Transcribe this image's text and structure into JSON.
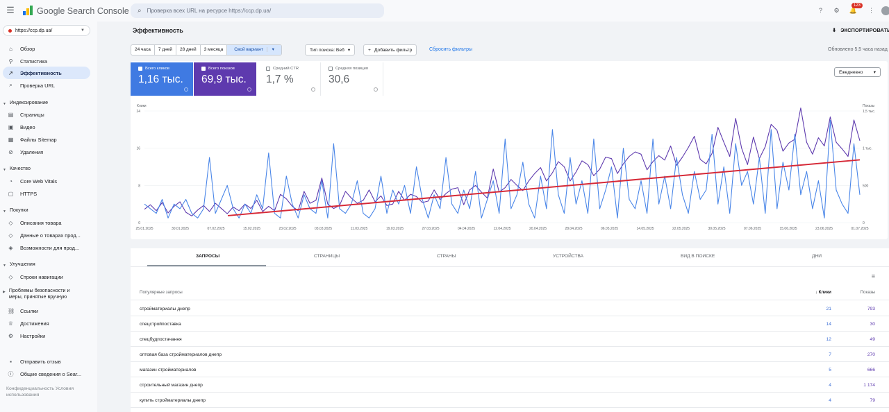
{
  "header": {
    "brand": "Google Search Console",
    "search_placeholder": "Проверка всех URL на ресурсе https://ccp.dp.ua/",
    "badge": "123"
  },
  "property": "https://ccp.dp.ua/",
  "sidebar": {
    "items": [
      {
        "label": "Обзор",
        "icon": "home-icon"
      },
      {
        "label": "Статистика",
        "icon": "pin-icon"
      },
      {
        "label": "Эффективность",
        "icon": "trend-icon"
      },
      {
        "label": "Проверка URL",
        "icon": "search-icon"
      }
    ],
    "sections": [
      {
        "label": "Индексирование",
        "items": [
          "Страницы",
          "Видео",
          "Файлы Sitemap",
          "Удаления"
        ]
      },
      {
        "label": "Качество",
        "items": [
          "Core Web Vitals",
          "HTTPS"
        ]
      },
      {
        "label": "Покупки",
        "items": [
          "Описания товара",
          "Данные о товарах прод...",
          "Возможности для прод..."
        ]
      },
      {
        "label": "Улучшения",
        "items": [
          "Строки навигации"
        ]
      },
      {
        "label": "Проблемы безопасности и меры, принятые вручную",
        "items": [
          "Ссылки",
          "Достижения",
          "Настройки"
        ]
      }
    ],
    "bottom": [
      "Отправить отзыв",
      "Общие сведения о Sear..."
    ],
    "footer": "Конфиденциальность Условия использования"
  },
  "page": {
    "title": "Эффективность",
    "export": "ЭКСПОРТИРОВАТЬ",
    "updated": "Обновлено 5,5 часа назад"
  },
  "filters": {
    "periods": [
      "24 часа",
      "7 дней",
      "28 дней",
      "3 месяца",
      "Свой вариант"
    ],
    "search_type": "Тип поиска: Веб",
    "add_filter": "Добавить фильтр",
    "reset": "Сбросить фильтры"
  },
  "metrics": [
    {
      "label": "Всего кликов",
      "value": "1,16 тыс."
    },
    {
      "label": "Всего показов",
      "value": "69,9 тыс."
    },
    {
      "label": "Средний CTR",
      "value": "1,7 %"
    },
    {
      "label": "Средняя позиция",
      "value": "30,6"
    }
  ],
  "granularity": "Ежедневно",
  "chart_data": {
    "type": "line",
    "title": "",
    "ylabel_left": "Клики",
    "ylabel_right": "Показы",
    "y_left_ticks": [
      "0",
      "8",
      "16",
      "24"
    ],
    "y_right_ticks": [
      "0",
      "500",
      "1 тыс.",
      "1,5 тыс."
    ],
    "ylim_left": [
      0,
      24
    ],
    "ylim_right": [
      0,
      1500
    ],
    "x_ticks": [
      "25.01.2025",
      "30.01.2025",
      "07.02.2025",
      "15.02.2025",
      "23.02.2025",
      "03.03.2025",
      "11.03.2025",
      "19.03.2025",
      "27.03.2025",
      "04.04.2025",
      "12.04.2025",
      "20.04.2025",
      "28.04.2025",
      "06.05.2025",
      "14.05.2025",
      "22.05.2025",
      "30.05.2025",
      "07.06.2025",
      "15.06.2025",
      "23.06.2025",
      "01.07.2025"
    ],
    "series": [
      {
        "name": "Всего кликов",
        "color": "#4a86e8",
        "values": [
          4,
          3,
          2,
          5,
          1,
          4,
          3,
          5,
          2,
          1,
          3,
          14,
          2,
          5,
          8,
          3,
          1,
          4,
          2,
          6,
          3,
          15,
          2,
          1,
          10,
          4,
          1,
          6,
          3,
          2,
          9,
          1,
          17,
          3,
          2,
          4,
          9,
          2,
          1,
          3,
          10,
          2,
          7,
          4,
          8,
          2,
          12,
          5,
          1,
          6,
          3,
          14,
          4,
          2,
          7,
          3,
          11,
          1,
          5,
          9,
          2,
          18,
          3,
          6,
          13,
          4,
          1,
          10,
          3,
          20,
          6,
          2,
          14,
          4,
          9,
          2,
          18,
          3,
          7,
          12,
          1,
          16,
          5,
          3,
          9,
          2,
          18,
          4,
          10,
          3,
          14,
          6,
          2,
          11,
          5,
          7,
          19,
          4,
          12,
          2,
          17,
          8,
          11,
          4,
          14,
          2,
          20,
          3,
          13,
          7,
          19,
          6,
          11,
          3,
          9,
          1,
          22,
          7,
          4,
          2,
          17,
          6
        ]
      },
      {
        "name": "Всего показов",
        "color": "#5e3aae",
        "values": [
          180,
          240,
          160,
          270,
          130,
          220,
          280,
          140,
          90,
          170,
          230,
          150,
          260,
          190,
          120,
          210,
          160,
          250,
          190,
          300,
          150,
          220,
          160,
          380,
          320,
          220,
          160,
          420,
          260,
          300,
          600,
          250,
          190,
          230,
          420,
          330,
          260,
          300,
          440,
          280,
          360,
          230,
          250,
          420,
          300,
          380,
          350,
          270,
          290,
          440,
          310,
          390,
          450,
          470,
          240,
          440,
          500,
          410,
          330,
          720,
          410,
          470,
          580,
          500,
          430,
          560,
          660,
          740,
          560,
          670,
          820,
          750,
          560,
          680,
          830,
          780,
          630,
          720,
          880,
          860,
          660,
          790,
          890,
          950,
          920,
          710,
          820,
          900,
          840,
          1030,
          770,
          880,
          1010,
          1160,
          850,
          790,
          930,
          1280,
          1080,
          890,
          1400,
          1000,
          780,
          1150,
          860,
          1020,
          1320,
          1240,
          960,
          1070,
          1120,
          1540,
          1080,
          920,
          1140,
          1030,
          1420,
          1080,
          990,
          890,
          1380,
          1100
        ]
      }
    ],
    "trend": {
      "color": "#d62a38",
      "from": 1.5,
      "to": 13.5
    }
  },
  "tabs": [
    "ЗАПРОСЫ",
    "СТРАНИЦЫ",
    "СТРАНЫ",
    "УСТРОЙСТВА",
    "ВИД В ПОИСКЕ",
    "ДНИ"
  ],
  "table": {
    "headers": {
      "query": "Популярные запросы",
      "clicks": "Клики",
      "impressions": "Показы"
    },
    "rows": [
      {
        "q": "стройматериалы днепр",
        "c": "21",
        "i": "793"
      },
      {
        "q": "спецстройпоставка",
        "c": "14",
        "i": "30"
      },
      {
        "q": "спецбудпостачання",
        "c": "12",
        "i": "49"
      },
      {
        "q": "оптовая база стройматериалов днепр",
        "c": "7",
        "i": "270"
      },
      {
        "q": "магазин стройматериалов",
        "c": "5",
        "i": "666"
      },
      {
        "q": "строительный магазин днепр",
        "c": "4",
        "i": "1 174"
      },
      {
        "q": "купить стройматериалы днепр",
        "c": "4",
        "i": "79"
      }
    ]
  }
}
